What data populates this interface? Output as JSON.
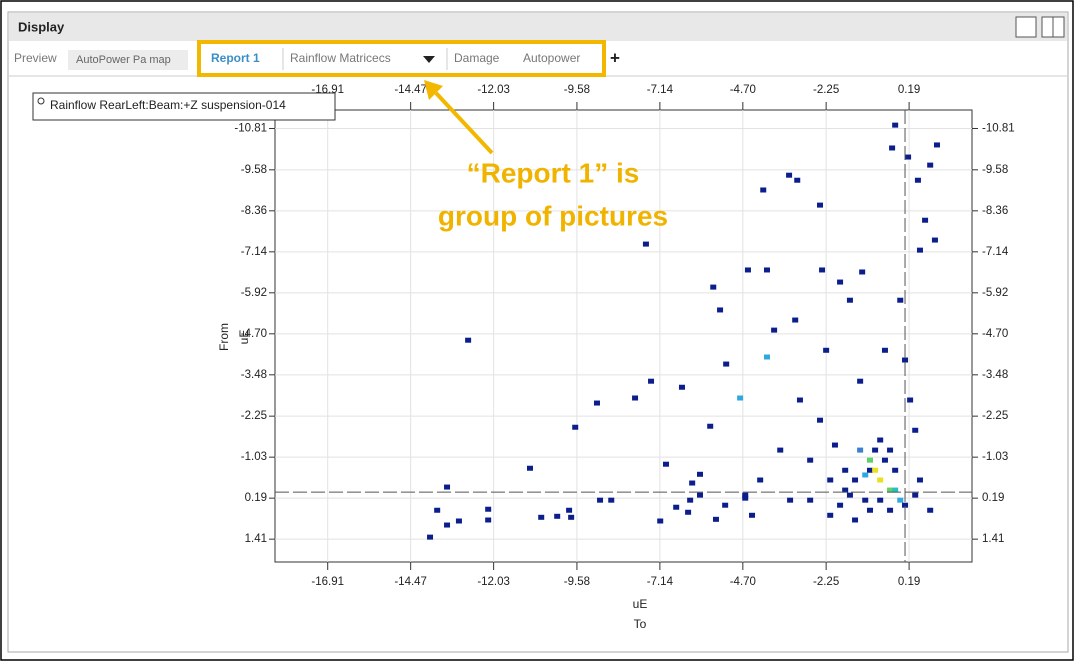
{
  "window": {
    "title": "Display"
  },
  "tabs": [
    "Preview",
    "AutoPower Pa map",
    "Report 1",
    "Rainflow Matricecs",
    "Damage",
    "Autopower",
    "+"
  ],
  "legend_box": "Rainflow RearLeft:Beam:+Z  suspension-014",
  "annotation": [
    "“Report 1” is",
    "group of pictures"
  ],
  "chart_data": {
    "type": "scatter",
    "xlabel": [
      "uE",
      "To"
    ],
    "ylabel": [
      "From",
      "uE"
    ],
    "xlim": [
      -18.46,
      2.04
    ],
    "ylim": [
      -11.36,
      2.09
    ],
    "y_inverted": true,
    "grid": true,
    "xticks": [
      -16.91,
      -14.47,
      -12.03,
      -9.58,
      -7.14,
      {
        "value": -4.7,
        "label": "-4.70"
      },
      -2.25,
      0.19
    ],
    "yticks": [
      -10.81,
      -9.58,
      -8.36,
      -7.14,
      -5.92,
      {
        "value": -4.7,
        "label": "-4.70"
      },
      -3.48,
      -2.25,
      -1.03,
      0.19,
      1.41
    ],
    "cursor": {
      "x": 0.07,
      "y": 0.01
    },
    "x": [
      -13.9,
      -13.69,
      -13.4,
      -13.4,
      -13.05,
      -12.78,
      -12.19,
      -12.19,
      -10.96,
      -10.63,
      -10.16,
      -9.81,
      -9.75,
      -9.63,
      -8.99,
      -8.9,
      -8.57,
      -7.87,
      -7.55,
      -7.4,
      -7.13,
      -6.96,
      -6.66,
      -6.49,
      -6.31,
      -6.19,
      -5.96,
      -5.66,
      -5.57,
      -5.49,
      -5.37,
      -5.19,
      -4.78,
      -4.63,
      -4.55,
      -4.43,
      -4.1,
      -3.99,
      -3.99,
      -3.78,
      -3.6,
      -3.34,
      -3.16,
      -3.1,
      -3.02,
      -2.72,
      -2.43,
      -2.37,
      -2.25,
      -2.13,
      -1.99,
      -1.84,
      -1.55,
      -1.19,
      -0.96,
      -0.81,
      -0.66,
      -0.52,
      -0.37,
      -0.22,
      -0.31,
      0.16,
      -0.07,
      0.07,
      0.22,
      0.45,
      0.51,
      0.66,
      0.81,
      0.95,
      1.01,
      -1.1,
      -1.4,
      -1.69,
      -0.66,
      -0.22,
      -0.96,
      0.37,
      0.81,
      -0.52,
      -1.25,
      -2.43,
      -2.72,
      -3.31,
      -4.19,
      -5.96,
      -5.22,
      -6.25,
      -4.63,
      -0.96,
      -1.1,
      -0.07,
      -1.25,
      -0.81,
      -0.37,
      -1.4,
      -0.22,
      0.07,
      -1.55,
      -0.66,
      -1.84,
      0.37,
      0.51,
      -2.13,
      -1.69,
      -0.37
    ],
    "values": [
      1.35,
      0.55,
      -0.14,
      0.99,
      0.87,
      -4.51,
      0.52,
      0.84,
      -0.7,
      0.76,
      0.73,
      0.55,
      0.76,
      -1.92,
      -2.64,
      0.25,
      0.25,
      -2.79,
      -7.37,
      -3.29,
      0.87,
      -0.82,
      0.46,
      -3.11,
      0.61,
      -0.26,
      -0.52,
      -1.95,
      -6.09,
      0.82,
      -5.41,
      -3.8,
      -2.79,
      0.19,
      -6.6,
      0.7,
      -8.98,
      -6.6,
      -4.01,
      -4.81,
      -1.24,
      -9.42,
      -5.11,
      -9.27,
      -2.73,
      0.25,
      -8.53,
      -6.6,
      -4.21,
      -0.35,
      -1.39,
      -6.24,
      -5.7,
      -6.54,
      -0.64,
      -0.64,
      -0.35,
      -0.94,
      -0.05,
      -10.91,
      -10.23,
      -9.96,
      -5.7,
      -3.92,
      -2.73,
      -9.27,
      -7.19,
      -8.08,
      -9.72,
      -7.49,
      -10.32,
      0.25,
      0.84,
      -0.05,
      -1.54,
      -0.64,
      0.55,
      -1.83,
      0.55,
      -4.21,
      -3.29,
      -2.13,
      -0.94,
      0.25,
      -0.35,
      0.1,
      0.4,
      0.25,
      0.1,
      -0.94,
      -0.5,
      0.25,
      -1.24,
      -1.24,
      -1.24,
      -0.35,
      -0.05,
      0.4,
      0.1,
      0.25,
      0.4,
      0.1,
      -0.35,
      0.7,
      -0.64,
      0.55
    ],
    "colors": [
      "#0b1e8c",
      "#0b1e8c",
      "#0b1e8c",
      "#0b1e8c",
      "#0b1e8c",
      "#0b1e8c",
      "#0b1e8c",
      "#0b1e8c",
      "#0b1e8c",
      "#0b1e8c",
      "#0b1e8c",
      "#0b1e8c",
      "#0b1e8c",
      "#0b1e8c",
      "#0b1e8c",
      "#0b1e8c",
      "#0b1e8c",
      "#0b1e8c",
      "#0b1e8c",
      "#0b1e8c",
      "#0b1e8c",
      "#0b1e8c",
      "#0b1e8c",
      "#0b1e8c",
      "#0b1e8c",
      "#0b1e8c",
      "#0b1e8c",
      "#0b1e8c",
      "#0b1e8c",
      "#0b1e8c",
      "#0b1e8c",
      "#0b1e8c",
      "#2fa8e0",
      "#0b1e8c",
      "#0b1e8c",
      "#0b1e8c",
      "#0b1e8c",
      "#0b1e8c",
      "#2fa8e0",
      "#0b1e8c",
      "#0b1e8c",
      "#0b1e8c",
      "#0b1e8c",
      "#0b1e8c",
      "#0b1e8c",
      "#0b1e8c",
      "#0b1e8c",
      "#0b1e8c",
      "#0b1e8c",
      "#0b1e8c",
      "#0b1e8c",
      "#0b1e8c",
      "#0b1e8c",
      "#0b1e8c",
      "#0b1e8c",
      "#e8e020",
      "#e8e020",
      "#0b1e8c",
      "#5fd06a",
      "#0b1e8c",
      "#0b1e8c",
      "#0b1e8c",
      "#0b1e8c",
      "#0b1e8c",
      "#0b1e8c",
      "#0b1e8c",
      "#0b1e8c",
      "#0b1e8c",
      "#0b1e8c",
      "#0b1e8c",
      "#0b1e8c",
      "#0b1e8c",
      "#0b1e8c",
      "#0b1e8c",
      "#0b1e8c",
      "#0b1e8c",
      "#0b1e8c",
      "#0b1e8c",
      "#0b1e8c",
      "#0b1e8c",
      "#0b1e8c",
      "#0b1e8c",
      "#0b1e8c",
      "#0b1e8c",
      "#0b1e8c",
      "#0b1e8c",
      "#0b1e8c",
      "#0b1e8c",
      "#0b1e8c",
      "#5fd06a",
      "#2fa8e0",
      "#2fa8e0",
      "#3a7fd0",
      "#0b1e8c",
      "#0b1e8c",
      "#0b1e8c",
      "#27c0c0",
      "#0b1e8c",
      "#0b1e8c",
      "#0b1e8c",
      "#0b1e8c",
      "#0b1e8c",
      "#0b1e8c",
      "#0b1e8c",
      "#0b1e8c",
      "#0b1e8c"
    ]
  }
}
